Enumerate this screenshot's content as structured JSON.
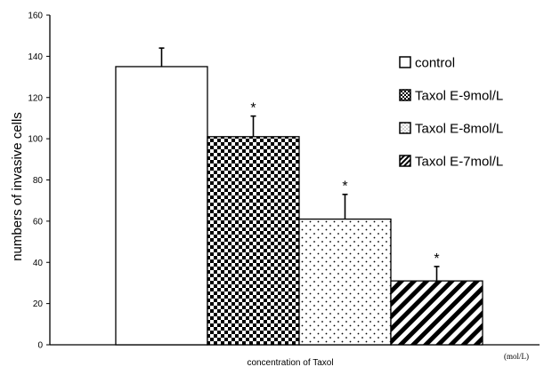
{
  "chart_data": {
    "type": "bar",
    "xlabel": "concentration of Taxol",
    "x_unit": "(mol/L)",
    "ylabel": "numbers of invasive cells",
    "ylim": [
      0,
      160
    ],
    "yticks": [
      "0",
      "20",
      "40",
      "60",
      "80",
      "100",
      "120",
      "140",
      "160"
    ],
    "grid": false,
    "legend_position": "right",
    "series": [
      {
        "name": "control",
        "value": 135,
        "error": 9,
        "significant": false,
        "pattern": "plain",
        "color": "#ffffff"
      },
      {
        "name": "Taxol E-9mol/L",
        "value": 101,
        "error": 10,
        "significant": true,
        "pattern": "checker",
        "color": "#000000"
      },
      {
        "name": "Taxol E-8mol/L",
        "value": 61,
        "error": 12,
        "significant": true,
        "pattern": "dots",
        "color": "#000000"
      },
      {
        "name": "Taxol E-7mol/L",
        "value": 31,
        "error": 7,
        "significant": true,
        "pattern": "diagonal",
        "color": "#000000"
      }
    ],
    "significance_marker": "*"
  }
}
